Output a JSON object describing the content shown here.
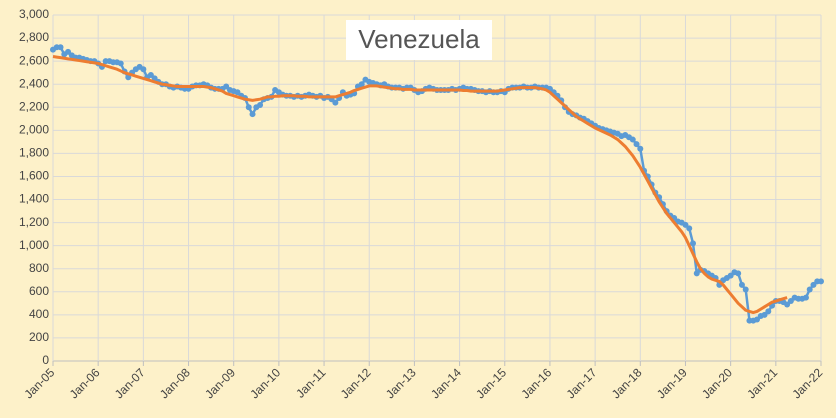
{
  "chart_data": {
    "type": "line",
    "title": "Venezuela",
    "categories": [
      "Jan-05",
      null,
      null,
      null,
      null,
      null,
      null,
      null,
      null,
      null,
      null,
      null,
      "Jan-06",
      null,
      null,
      null,
      null,
      null,
      null,
      null,
      null,
      null,
      null,
      null,
      "Jan-07",
      null,
      null,
      null,
      null,
      null,
      null,
      null,
      null,
      null,
      null,
      null,
      "Jan-08",
      null,
      null,
      null,
      null,
      null,
      null,
      null,
      null,
      null,
      null,
      null,
      "Jan-09",
      null,
      null,
      null,
      null,
      null,
      null,
      null,
      null,
      null,
      null,
      null,
      "Jan-10",
      null,
      null,
      null,
      null,
      null,
      null,
      null,
      null,
      null,
      null,
      null,
      "Jan-11",
      null,
      null,
      null,
      null,
      null,
      null,
      null,
      null,
      null,
      null,
      null,
      "Jan-12",
      null,
      null,
      null,
      null,
      null,
      null,
      null,
      null,
      null,
      null,
      null,
      "Jan-13",
      null,
      null,
      null,
      null,
      null,
      null,
      null,
      null,
      null,
      null,
      null,
      "Jan-14",
      null,
      null,
      null,
      null,
      null,
      null,
      null,
      null,
      null,
      null,
      null,
      "Jan-15",
      null,
      null,
      null,
      null,
      null,
      null,
      null,
      null,
      null,
      null,
      null,
      "Jan-16",
      null,
      null,
      null,
      null,
      null,
      null,
      null,
      null,
      null,
      null,
      null,
      "Jan-17",
      null,
      null,
      null,
      null,
      null,
      null,
      null,
      null,
      null,
      null,
      null,
      "Jan-18",
      null,
      null,
      null,
      null,
      null,
      null,
      null,
      null,
      null,
      null,
      null,
      "Jan-19",
      null,
      null,
      null,
      null,
      null,
      null,
      null,
      null,
      null,
      null,
      null,
      "Jan-20",
      null,
      null,
      null,
      null,
      null,
      null,
      null,
      null,
      null,
      null,
      null,
      "Jan-21",
      null,
      null,
      null,
      null,
      null,
      null,
      null,
      null,
      null,
      null,
      null,
      "Jan-22"
    ],
    "series": [
      {
        "color": "#5b9bd5",
        "markers": true,
        "values": [
          2700,
          2720,
          2720,
          2660,
          2680,
          2650,
          2630,
          2630,
          2620,
          2610,
          2600,
          2600,
          2580,
          2550,
          2600,
          2600,
          2590,
          2590,
          2580,
          2510,
          2460,
          2500,
          2530,
          2550,
          2530,
          2460,
          2480,
          2450,
          2420,
          2400,
          2400,
          2380,
          2370,
          2380,
          2370,
          2360,
          2360,
          2380,
          2390,
          2390,
          2400,
          2390,
          2370,
          2360,
          2360,
          2360,
          2380,
          2350,
          2340,
          2330,
          2300,
          2280,
          2200,
          2140,
          2200,
          2220,
          2270,
          2280,
          2290,
          2350,
          2330,
          2310,
          2300,
          2300,
          2290,
          2300,
          2290,
          2300,
          2310,
          2300,
          2290,
          2300,
          2280,
          2290,
          2270,
          2240,
          2280,
          2330,
          2300,
          2310,
          2320,
          2380,
          2400,
          2440,
          2420,
          2410,
          2400,
          2390,
          2400,
          2380,
          2370,
          2370,
          2370,
          2360,
          2370,
          2370,
          2350,
          2330,
          2340,
          2360,
          2370,
          2360,
          2350,
          2350,
          2350,
          2350,
          2360,
          2350,
          2360,
          2370,
          2360,
          2360,
          2350,
          2340,
          2340,
          2330,
          2340,
          2330,
          2330,
          2340,
          2330,
          2360,
          2370,
          2370,
          2370,
          2380,
          2370,
          2370,
          2380,
          2370,
          2370,
          2370,
          2360,
          2330,
          2300,
          2260,
          2200,
          2160,
          2140,
          2130,
          2110,
          2100,
          2080,
          2060,
          2040,
          2020,
          2010,
          2000,
          1990,
          1980,
          1970,
          1950,
          1960,
          1940,
          1920,
          1880,
          1840,
          1650,
          1600,
          1530,
          1460,
          1420,
          1360,
          1300,
          1260,
          1240,
          1210,
          1200,
          1180,
          1150,
          1020,
          760,
          790,
          780,
          760,
          740,
          720,
          660,
          700,
          720,
          740,
          770,
          760,
          660,
          620,
          350,
          350,
          360,
          390,
          400,
          430,
          480,
          520,
          520,
          510,
          490,
          520,
          550,
          540,
          540,
          550,
          620,
          660,
          690,
          690
        ]
      },
      {
        "color": "#ed7d31",
        "markers": false,
        "values": [
          2640,
          2635,
          2630,
          2625,
          2620,
          2615,
          2610,
          2605,
          2600,
          2595,
          2590,
          2585,
          2580,
          2570,
          2560,
          2550,
          2540,
          2530,
          2515,
          2500,
          2490,
          2480,
          2470,
          2460,
          2450,
          2440,
          2430,
          2420,
          2410,
          2400,
          2395,
          2390,
          2385,
          2380,
          2380,
          2380,
          2380,
          2380,
          2380,
          2380,
          2380,
          2375,
          2370,
          2360,
          2350,
          2340,
          2320,
          2310,
          2300,
          2290,
          2280,
          2270,
          2265,
          2260,
          2265,
          2270,
          2280,
          2290,
          2290,
          2295,
          2295,
          2300,
          2300,
          2300,
          2300,
          2295,
          2295,
          2295,
          2290,
          2290,
          2290,
          2290,
          2290,
          2290,
          2290,
          2290,
          2300,
          2310,
          2320,
          2330,
          2345,
          2355,
          2365,
          2375,
          2385,
          2385,
          2385,
          2380,
          2375,
          2370,
          2365,
          2360,
          2360,
          2355,
          2355,
          2355,
          2350,
          2350,
          2350,
          2350,
          2350,
          2350,
          2350,
          2350,
          2350,
          2350,
          2350,
          2350,
          2350,
          2345,
          2345,
          2340,
          2340,
          2340,
          2340,
          2340,
          2340,
          2340,
          2340,
          2345,
          2350,
          2355,
          2360,
          2365,
          2370,
          2370,
          2370,
          2370,
          2370,
          2365,
          2360,
          2350,
          2330,
          2300,
          2270,
          2240,
          2210,
          2180,
          2150,
          2120,
          2100,
          2080,
          2060,
          2040,
          2020,
          2005,
          1990,
          1975,
          1960,
          1940,
          1920,
          1890,
          1860,
          1820,
          1780,
          1730,
          1680,
          1620,
          1560,
          1500,
          1440,
          1380,
          1330,
          1280,
          1240,
          1200,
          1160,
          1120,
          1070,
          1000,
          930,
          860,
          800,
          760,
          730,
          710,
          700,
          690,
          660,
          620,
          580,
          540,
          500,
          470,
          440,
          430,
          420,
          430,
          450,
          470,
          490,
          510,
          520,
          530,
          540,
          550,
          null,
          null,
          null,
          null,
          null,
          null,
          null,
          null,
          null
        ]
      }
    ],
    "ylim": [
      0,
      3000
    ],
    "yticks": [
      0,
      200,
      400,
      600,
      800,
      {
        "value": 1000,
        "label": "1,000"
      },
      {
        "value": 1200,
        "label": "1,200"
      },
      {
        "value": 1400,
        "label": "1,400"
      },
      {
        "value": 1600,
        "label": "1,600"
      },
      {
        "value": 1800,
        "label": "1,800"
      },
      {
        "value": 2000,
        "label": "2,000"
      },
      {
        "value": 2200,
        "label": "2,200"
      },
      {
        "value": 2400,
        "label": "2,400"
      },
      {
        "value": 2600,
        "label": "2,600"
      },
      {
        "value": 2800,
        "label": "2,800"
      },
      {
        "value": 3000,
        "label": "3,000"
      }
    ],
    "grid": true
  }
}
